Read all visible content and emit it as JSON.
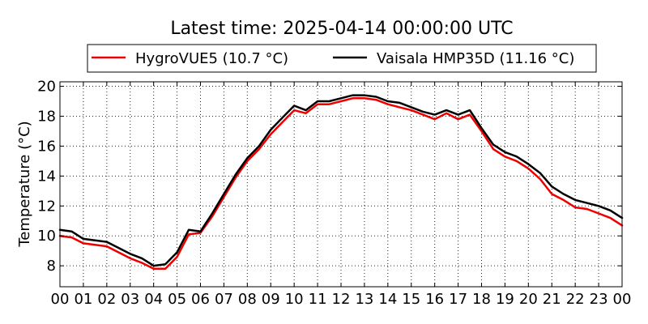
{
  "chart_data": {
    "type": "line",
    "title": "Latest time: 2025-04-14 00:00:00 UTC",
    "xlabel": "",
    "ylabel": "Temperature (°C)",
    "xlim": [
      0,
      24
    ],
    "ylim": [
      6.6,
      20.3
    ],
    "grid": true,
    "legend_position": "top",
    "x_tick_labels": [
      "00",
      "01",
      "02",
      "03",
      "04",
      "05",
      "06",
      "07",
      "08",
      "09",
      "10",
      "11",
      "12",
      "13",
      "14",
      "15",
      "16",
      "17",
      "18",
      "19",
      "20",
      "21",
      "22",
      "23",
      "00"
    ],
    "y_ticks": [
      8,
      10,
      12,
      14,
      16,
      18,
      20
    ],
    "x": [
      0,
      0.5,
      1,
      1.5,
      2,
      2.5,
      3,
      3.5,
      4,
      4.5,
      5,
      5.5,
      6,
      6.5,
      7,
      7.5,
      8,
      8.5,
      9,
      9.5,
      10,
      10.5,
      11,
      11.5,
      12,
      12.5,
      13,
      13.5,
      14,
      14.5,
      15,
      15.5,
      16,
      16.5,
      17,
      17.5,
      18,
      18.5,
      19,
      19.5,
      20,
      20.5,
      21,
      21.5,
      22,
      22.5,
      23,
      23.5,
      24
    ],
    "series": [
      {
        "name": "HygroVUE5 (10.7 °C)",
        "color": "#ee0000",
        "values": [
          10.0,
          9.9,
          9.5,
          9.4,
          9.3,
          8.9,
          8.5,
          8.2,
          7.8,
          7.8,
          8.6,
          10.1,
          10.2,
          11.3,
          12.6,
          13.9,
          15.0,
          15.8,
          16.8,
          17.6,
          18.4,
          18.2,
          18.8,
          18.8,
          19.0,
          19.2,
          19.2,
          19.1,
          18.8,
          18.6,
          18.4,
          18.1,
          17.8,
          18.2,
          17.8,
          18.1,
          17.0,
          15.8,
          15.3,
          15.0,
          14.5,
          13.8,
          12.8,
          12.4,
          11.9,
          11.8,
          11.5,
          11.2,
          10.7
        ]
      },
      {
        "name": "Vaisala HMP35D (11.16 °C)",
        "color": "#000000",
        "values": [
          10.4,
          10.3,
          9.8,
          9.7,
          9.6,
          9.2,
          8.8,
          8.5,
          8.0,
          8.1,
          8.9,
          10.4,
          10.3,
          11.5,
          12.8,
          14.1,
          15.2,
          16.0,
          17.1,
          17.9,
          18.7,
          18.4,
          19.0,
          19.0,
          19.2,
          19.4,
          19.4,
          19.3,
          19.0,
          18.9,
          18.6,
          18.3,
          18.1,
          18.4,
          18.1,
          18.4,
          17.2,
          16.1,
          15.6,
          15.3,
          14.8,
          14.2,
          13.3,
          12.8,
          12.4,
          12.2,
          12.0,
          11.7,
          11.2
        ]
      }
    ]
  }
}
